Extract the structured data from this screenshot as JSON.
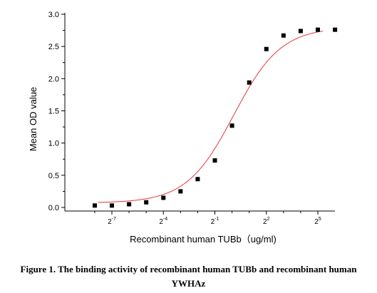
{
  "chart_data": {
    "type": "scatter",
    "title": "",
    "xlabel": "Recombinant human  TUBb（ug/ml)",
    "ylabel": "Mean OD value",
    "x_scale": "log2",
    "x_tick_exponents": [
      -7,
      -4,
      -1,
      2,
      5
    ],
    "ylim": [
      0,
      3.0
    ],
    "y_ticks": [
      "0.0",
      "0.5",
      "1.0",
      "1.5",
      "2.0",
      "2.5",
      "3.0"
    ],
    "series": [
      {
        "points": [
          {
            "x": 0.00391,
            "y": 0.03
          },
          {
            "x": 0.00781,
            "y": 0.03
          },
          {
            "x": 0.01563,
            "y": 0.05
          },
          {
            "x": 0.03125,
            "y": 0.08
          },
          {
            "x": 0.0625,
            "y": 0.15
          },
          {
            "x": 0.125,
            "y": 0.25
          },
          {
            "x": 0.25,
            "y": 0.44
          },
          {
            "x": 0.5,
            "y": 0.73
          },
          {
            "x": 1,
            "y": 1.27
          },
          {
            "x": 2,
            "y": 1.94
          },
          {
            "x": 4,
            "y": 2.46
          },
          {
            "x": 8,
            "y": 2.67
          },
          {
            "x": 16,
            "y": 2.74
          },
          {
            "x": 32,
            "y": 2.76
          },
          {
            "x": 64,
            "y": 2.76
          }
        ],
        "marker_color": "#000000"
      }
    ],
    "fit_curve": {
      "type": "four-parameter logistic",
      "color": "#e8343a"
    }
  },
  "caption": {
    "line1": "Figure 1. The binding activity of recombinant human TUBb and recombinant human",
    "line2": "YWHAz"
  }
}
